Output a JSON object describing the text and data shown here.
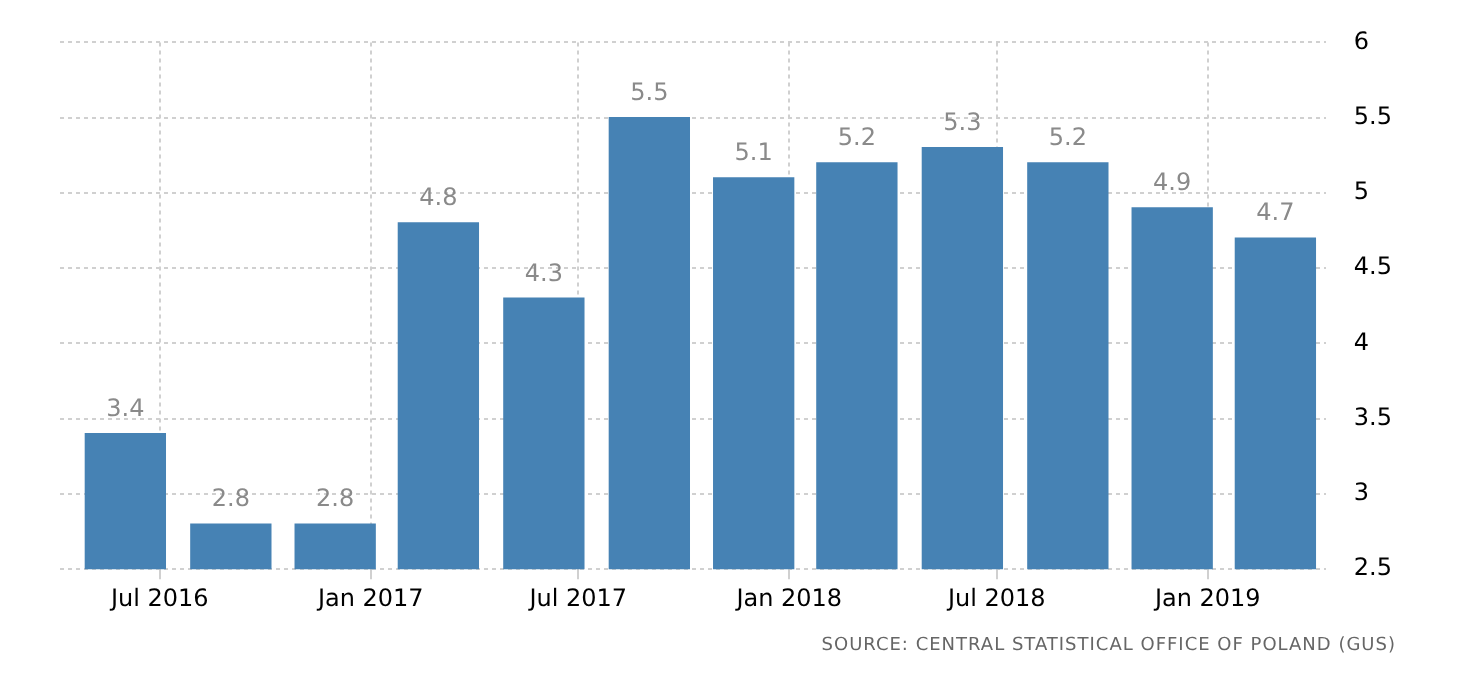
{
  "chart_data": {
    "type": "bar",
    "x": [
      "2016-06",
      "2016-09",
      "2016-12",
      "2017-03",
      "2017-06",
      "2017-09",
      "2017-12",
      "2018-03",
      "2018-06",
      "2018-09",
      "2018-12",
      "2019-03"
    ],
    "values": [
      3.4,
      2.8,
      2.8,
      4.8,
      4.3,
      5.5,
      5.1,
      5.2,
      5.3,
      5.2,
      4.9,
      4.7
    ],
    "color": "#4682b4",
    "xlim": [
      "2016-04-05",
      "2019-04-14"
    ],
    "xticks": [
      {
        "value": "2016-07",
        "label": "Jul 2016"
      },
      {
        "value": "2017-01",
        "label": "Jan 2017"
      },
      {
        "value": "2017-07",
        "label": "Jul 2017"
      },
      {
        "value": "2018-01",
        "label": "Jan 2018"
      },
      {
        "value": "2018-07",
        "label": "Jul 2018"
      },
      {
        "value": "2019-01",
        "label": "Jan 2019"
      }
    ],
    "ylim": [
      2.5,
      6
    ],
    "yticks": [
      2.5,
      3,
      3.5,
      4,
      4.5,
      5,
      5.5,
      6
    ],
    "grid": true,
    "data_labels": true,
    "annotations": [
      "SOURCE: CENTRAL STATISTICAL OFFICE OF POLAND (GUS)"
    ]
  }
}
